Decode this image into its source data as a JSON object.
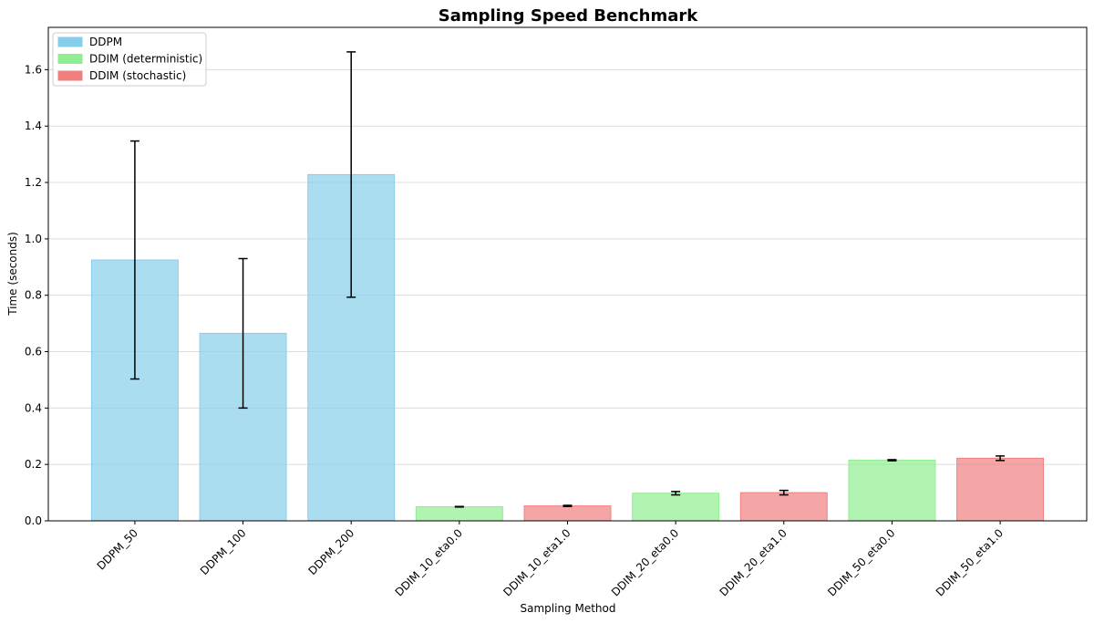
{
  "chart_data": {
    "type": "bar",
    "title": "Sampling Speed Benchmark",
    "xlabel": "Sampling Method",
    "ylabel": "Time (seconds)",
    "ylim": [
      0,
      1.75
    ],
    "yticks": [
      0.0,
      0.2,
      0.4,
      0.6,
      0.8,
      1.0,
      1.2,
      1.4,
      1.6
    ],
    "ytick_labels": [
      "0.0",
      "0.2",
      "0.4",
      "0.6",
      "0.8",
      "1.0",
      "1.2",
      "1.4",
      "1.6"
    ],
    "grid": "y",
    "legend_position": "top-left",
    "categories": [
      "DDPM_50",
      "DDPM_100",
      "DDPM_200",
      "DDIM_10_eta0.0",
      "DDIM_10_eta1.0",
      "DDIM_20_eta0.0",
      "DDIM_20_eta1.0",
      "DDIM_50_eta0.0",
      "DDIM_50_eta1.0"
    ],
    "values": [
      0.925,
      0.665,
      1.228,
      0.05,
      0.053,
      0.098,
      0.1,
      0.215,
      0.222
    ],
    "errors": [
      0.422,
      0.265,
      0.435,
      0.001,
      0.002,
      0.006,
      0.008,
      0.002,
      0.008
    ],
    "groups": [
      "DDPM",
      "DDPM",
      "DDPM",
      "DDIM (deterministic)",
      "DDIM (stochastic)",
      "DDIM (deterministic)",
      "DDIM (stochastic)",
      "DDIM (deterministic)",
      "DDIM (stochastic)"
    ],
    "legend": [
      {
        "name": "DDPM",
        "color": "#87ceeb"
      },
      {
        "name": "DDIM (deterministic)",
        "color": "#90ee90"
      },
      {
        "name": "DDIM (stochastic)",
        "color": "#f08080"
      }
    ]
  }
}
